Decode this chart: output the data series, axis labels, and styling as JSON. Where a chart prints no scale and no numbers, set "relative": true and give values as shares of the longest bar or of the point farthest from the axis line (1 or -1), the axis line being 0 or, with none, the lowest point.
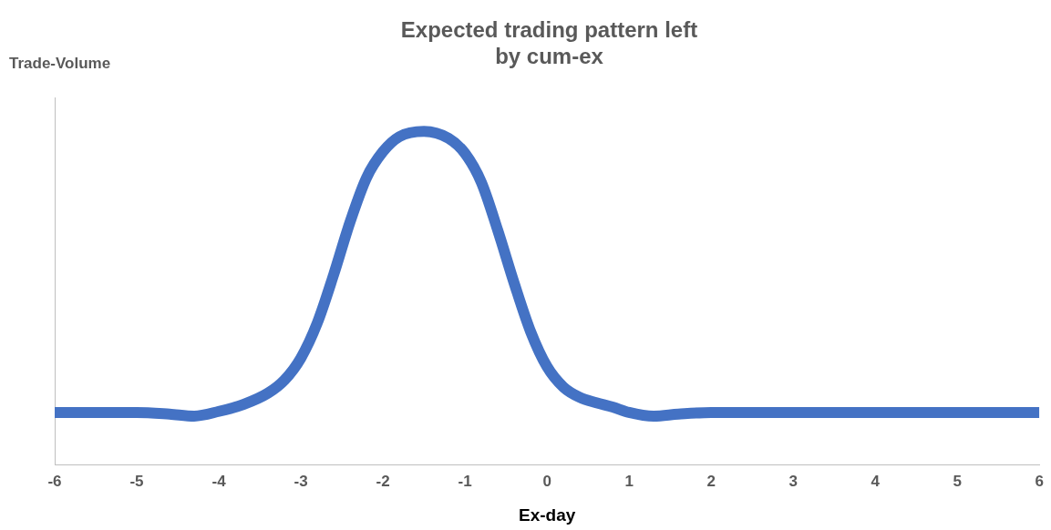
{
  "chart_data": {
    "type": "line",
    "title": "Expected trading pattern left\nby cum-ex",
    "xlabel": "Ex-day",
    "ylabel": "Trade-Volume",
    "relative": true,
    "grid": false,
    "legend": false,
    "marker": "none",
    "line_style": "solid",
    "tick_labels": "x",
    "xlim": [
      -6,
      6
    ],
    "xticks": [
      -6,
      -5,
      -4,
      -3,
      -2,
      -1,
      0,
      1,
      2,
      3,
      4,
      5,
      6
    ],
    "series": [
      {
        "color": "#4472c4",
        "x": [
          -6,
          -5,
          -4.6,
          -4.3,
          -4,
          -3.7,
          -3.4,
          -3.2,
          -3,
          -2.8,
          -2.6,
          -2.4,
          -2.2,
          -2,
          -1.8,
          -1.5,
          -1.2,
          -1,
          -0.8,
          -0.6,
          -0.4,
          -0.2,
          0,
          0.2,
          0.4,
          0.6,
          0.8,
          1,
          1.3,
          1.6,
          2,
          3,
          4,
          5,
          6
        ],
        "values": [
          0.158,
          0.158,
          0.153,
          0.147,
          0.161,
          0.182,
          0.216,
          0.255,
          0.321,
          0.426,
          0.571,
          0.729,
          0.861,
          0.939,
          0.984,
          1,
          0.979,
          0.934,
          0.847,
          0.703,
          0.545,
          0.4,
          0.295,
          0.234,
          0.203,
          0.187,
          0.174,
          0.158,
          0.147,
          0.153,
          0.158,
          0.158,
          0.158,
          0.158,
          0.158
        ]
      }
    ]
  }
}
